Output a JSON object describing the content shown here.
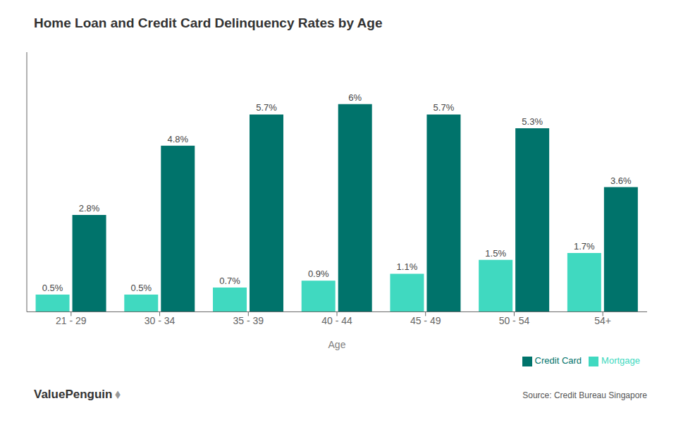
{
  "chart_data": {
    "type": "bar",
    "title": "Home Loan and Credit Card Delinquency Rates by Age",
    "xlabel": "Age",
    "categories": [
      "21 - 29",
      "30 - 34",
      "35 - 39",
      "40 - 44",
      "45 - 49",
      "50 - 54",
      "54+"
    ],
    "series": [
      {
        "name": "Mortgage",
        "color": "#40D9C0",
        "values": [
          0.5,
          0.5,
          0.7,
          0.9,
          1.1,
          1.5,
          1.7
        ],
        "value_labels": [
          "0.5%",
          "0.5%",
          "0.7%",
          "0.9%",
          "1.1%",
          "1.5%",
          "1.7%"
        ]
      },
      {
        "name": "Credit Card",
        "color": "#00736B",
        "values": [
          2.8,
          4.8,
          5.7,
          6.0,
          5.7,
          5.3,
          3.6
        ],
        "value_labels": [
          "2.8%",
          "4.8%",
          "5.7%",
          "6%",
          "5.7%",
          "5.3%",
          "3.6%"
        ]
      }
    ],
    "ylim": [
      0,
      7.5
    ],
    "grid": false,
    "legend": "lower right",
    "data_labels": true,
    "tick_labels": "x",
    "annotations": [
      "ValuePenguin",
      "⬧",
      "Source: Credit Bureau Singapore"
    ]
  }
}
